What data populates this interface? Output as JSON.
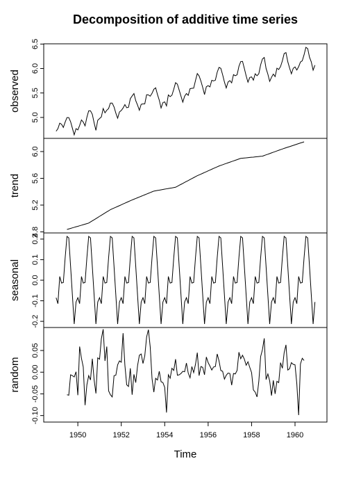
{
  "chart_data": {
    "type": "line",
    "title": "Decomposition of additive time series",
    "xlabel": "Time",
    "color": "#000000",
    "x": [
      1949,
      1949.083,
      1949.167,
      1949.25,
      1949.333,
      1949.417,
      1949.5,
      1949.583,
      1949.667,
      1949.75,
      1949.833,
      1949.917,
      1950,
      1950.083,
      1950.167,
      1950.25,
      1950.333,
      1950.417,
      1950.5,
      1950.583,
      1950.667,
      1950.75,
      1950.833,
      1950.917,
      1951,
      1951.083,
      1951.167,
      1951.25,
      1951.333,
      1951.417,
      1951.5,
      1951.583,
      1951.667,
      1951.75,
      1951.833,
      1951.917,
      1952,
      1952.083,
      1952.167,
      1952.25,
      1952.333,
      1952.417,
      1952.5,
      1952.583,
      1952.667,
      1952.75,
      1952.833,
      1952.917,
      1953,
      1953.083,
      1953.167,
      1953.25,
      1953.333,
      1953.417,
      1953.5,
      1953.583,
      1953.667,
      1953.75,
      1953.833,
      1953.917,
      1954,
      1954.083,
      1954.167,
      1954.25,
      1954.333,
      1954.417,
      1954.5,
      1954.583,
      1954.667,
      1954.75,
      1954.833,
      1954.917,
      1955,
      1955.083,
      1955.167,
      1955.25,
      1955.333,
      1955.417,
      1955.5,
      1955.583,
      1955.667,
      1955.75,
      1955.833,
      1955.917,
      1956,
      1956.083,
      1956.167,
      1956.25,
      1956.333,
      1956.417,
      1956.5,
      1956.583,
      1956.667,
      1956.75,
      1956.833,
      1956.917,
      1957,
      1957.083,
      1957.167,
      1957.25,
      1957.333,
      1957.417,
      1957.5,
      1957.583,
      1957.667,
      1957.75,
      1957.833,
      1957.917,
      1958,
      1958.083,
      1958.167,
      1958.25,
      1958.333,
      1958.417,
      1958.5,
      1958.583,
      1958.667,
      1958.75,
      1958.833,
      1958.917,
      1959,
      1959.083,
      1959.167,
      1959.25,
      1959.333,
      1959.417,
      1959.5,
      1959.583,
      1959.667,
      1959.75,
      1959.833,
      1959.917,
      1960,
      1960.083,
      1960.167,
      1960.25,
      1960.333,
      1960.417,
      1960.5,
      1960.583,
      1960.667,
      1960.75,
      1960.833,
      1960.917
    ],
    "xlim": [
      1948.43,
      1961.47
    ],
    "xticks": [
      1950,
      1952,
      1954,
      1956,
      1958,
      1960
    ],
    "series": [
      {
        "name": "observed",
        "ylim": [
          4.572,
          6.505
        ],
        "yticks": [
          {
            "value": 5,
            "label": "5.0"
          },
          5.5,
          {
            "value": 6,
            "label": "6.0"
          },
          6.5
        ],
        "values": [
          4.718,
          4.771,
          4.883,
          4.86,
          4.796,
          4.905,
          4.997,
          4.997,
          4.913,
          4.779,
          4.644,
          4.771,
          4.745,
          4.836,
          4.949,
          4.905,
          4.828,
          5.004,
          5.136,
          5.136,
          5.063,
          4.89,
          4.736,
          4.942,
          4.977,
          5.011,
          5.182,
          5.094,
          5.147,
          5.182,
          5.293,
          5.293,
          5.215,
          5.088,
          4.984,
          5.112,
          5.142,
          5.193,
          5.263,
          5.198,
          5.209,
          5.384,
          5.438,
          5.489,
          5.342,
          5.252,
          5.147,
          5.268,
          5.278,
          5.278,
          5.464,
          5.46,
          5.434,
          5.493,
          5.576,
          5.606,
          5.468,
          5.352,
          5.193,
          5.303,
          5.318,
          5.236,
          5.46,
          5.425,
          5.455,
          5.576,
          5.71,
          5.68,
          5.557,
          5.434,
          5.313,
          5.434,
          5.489,
          5.451,
          5.587,
          5.595,
          5.598,
          5.753,
          5.897,
          5.849,
          5.743,
          5.613,
          5.468,
          5.628,
          5.649,
          5.624,
          5.759,
          5.746,
          5.762,
          5.924,
          6.023,
          6.004,
          5.872,
          5.724,
          5.602,
          5.724,
          5.753,
          5.707,
          5.875,
          5.852,
          5.872,
          6.045,
          6.142,
          6.146,
          6.001,
          5.849,
          5.72,
          5.817,
          5.829,
          5.762,
          5.892,
          5.852,
          5.894,
          6.075,
          6.196,
          6.225,
          6.001,
          5.883,
          5.737,
          5.82,
          5.886,
          5.835,
          6.006,
          5.981,
          6.04,
          6.157,
          6.306,
          6.326,
          6.138,
          6.009,
          5.892,
          6.004,
          6.033,
          5.969,
          6.038,
          6.133,
          6.157,
          6.282,
          6.433,
          6.407,
          6.23,
          6.133,
          5.966,
          6.068
        ]
      },
      {
        "name": "trend",
        "ylim": [
          4.784,
          6.197
        ],
        "yticks": [
          4.8,
          5.2,
          5.6,
          {
            "value": 6,
            "label": "6.0"
          }
        ],
        "values": [
          null,
          null,
          null,
          null,
          null,
          null,
          4.836,
          4.844,
          4.852,
          4.86,
          4.868,
          4.876,
          4.883,
          4.891,
          4.899,
          4.907,
          4.915,
          4.923,
          4.931,
          4.948,
          4.965,
          4.981,
          4.998,
          5.015,
          5.032,
          5.048,
          5.065,
          5.082,
          5.099,
          5.115,
          5.132,
          5.144,
          5.156,
          5.168,
          5.18,
          5.192,
          5.204,
          5.217,
          5.229,
          5.241,
          5.253,
          5.265,
          5.277,
          5.288,
          5.299,
          5.31,
          5.321,
          5.332,
          5.343,
          5.354,
          5.365,
          5.376,
          5.387,
          5.398,
          5.409,
          5.414,
          5.419,
          5.423,
          5.428,
          5.433,
          5.438,
          5.443,
          5.448,
          5.453,
          5.457,
          5.462,
          5.467,
          5.481,
          5.496,
          5.51,
          5.524,
          5.539,
          5.553,
          5.567,
          5.582,
          5.596,
          5.61,
          5.625,
          5.639,
          5.651,
          5.663,
          5.675,
          5.687,
          5.699,
          5.712,
          5.724,
          5.736,
          5.748,
          5.76,
          5.772,
          5.784,
          5.794,
          5.803,
          5.813,
          5.822,
          5.832,
          5.841,
          5.851,
          5.86,
          5.87,
          5.879,
          5.889,
          5.898,
          5.901,
          5.904,
          5.906,
          5.909,
          5.912,
          5.915,
          5.917,
          5.92,
          5.923,
          5.926,
          5.929,
          5.931,
          5.941,
          5.951,
          5.96,
          5.97,
          5.98,
          5.99,
          5.999,
          6.009,
          6.019,
          6.029,
          6.038,
          6.048,
          6.057,
          6.066,
          6.074,
          6.083,
          6.092,
          6.101,
          6.11,
          6.119,
          6.128,
          6.136,
          6.145,
          null,
          null,
          null,
          null,
          null,
          null
        ]
      },
      {
        "name": "seasonal",
        "ylim": [
          -0.23,
          0.23
        ],
        "yticks": [
          -0.2,
          -0.1,
          {
            "value": 0,
            "label": "0.0"
          },
          0.1,
          0.2
        ],
        "values": [
          -0.085,
          -0.114,
          0.018,
          -0.014,
          -0.011,
          0.11,
          0.213,
          0.206,
          0.067,
          -0.073,
          -0.213,
          -0.106,
          -0.085,
          -0.114,
          0.018,
          -0.014,
          -0.011,
          0.11,
          0.213,
          0.206,
          0.067,
          -0.073,
          -0.213,
          -0.106,
          -0.085,
          -0.114,
          0.018,
          -0.014,
          -0.011,
          0.11,
          0.213,
          0.206,
          0.067,
          -0.073,
          -0.213,
          -0.106,
          -0.085,
          -0.114,
          0.018,
          -0.014,
          -0.011,
          0.11,
          0.213,
          0.206,
          0.067,
          -0.073,
          -0.213,
          -0.106,
          -0.085,
          -0.114,
          0.018,
          -0.014,
          -0.011,
          0.11,
          0.213,
          0.206,
          0.067,
          -0.073,
          -0.213,
          -0.106,
          -0.085,
          -0.114,
          0.018,
          -0.014,
          -0.011,
          0.11,
          0.213,
          0.206,
          0.067,
          -0.073,
          -0.213,
          -0.106,
          -0.085,
          -0.114,
          0.018,
          -0.014,
          -0.011,
          0.11,
          0.213,
          0.206,
          0.067,
          -0.073,
          -0.213,
          -0.106,
          -0.085,
          -0.114,
          0.018,
          -0.014,
          -0.011,
          0.11,
          0.213,
          0.206,
          0.067,
          -0.073,
          -0.213,
          -0.106,
          -0.085,
          -0.114,
          0.018,
          -0.014,
          -0.011,
          0.11,
          0.213,
          0.206,
          0.067,
          -0.073,
          -0.213,
          -0.106,
          -0.085,
          -0.114,
          0.018,
          -0.014,
          -0.011,
          0.11,
          0.213,
          0.206,
          0.067,
          -0.073,
          -0.213,
          -0.106,
          -0.085,
          -0.114,
          0.018,
          -0.014,
          -0.011,
          0.11,
          0.213,
          0.206,
          0.067,
          -0.073,
          -0.213,
          -0.106,
          -0.085,
          -0.114,
          0.018,
          -0.014,
          -0.011,
          0.11,
          0.213,
          0.206,
          0.067,
          -0.073,
          -0.213,
          -0.106
        ]
      },
      {
        "name": "random",
        "ylim": [
          -0.115,
          0.103
        ],
        "yticks": [
          {
            "value": -0.1,
            "label": "-0.10"
          },
          -0.05,
          {
            "value": 0,
            "label": "0.00"
          },
          0.05
        ],
        "values": [
          null,
          null,
          null,
          null,
          null,
          null,
          -0.052,
          -0.053,
          -0.006,
          -0.008,
          -0.011,
          0.001,
          -0.053,
          0.059,
          0.032,
          0.012,
          -0.076,
          -0.029,
          -0.008,
          -0.018,
          0.031,
          -0.018,
          -0.049,
          0.033,
          0.03,
          0.077,
          0.099,
          0.026,
          0.059,
          -0.043,
          -0.052,
          -0.057,
          -0.008,
          -0.007,
          0.017,
          0.026,
          0.023,
          0.09,
          0.016,
          -0.029,
          -0.033,
          0.009,
          -0.052,
          -0.005,
          -0.024,
          0.015,
          0.039,
          0.042,
          0.02,
          0.038,
          0.081,
          0.098,
          0.058,
          -0.015,
          -0.046,
          -0.014,
          -0.018,
          0.002,
          -0.022,
          -0.024,
          -0.035,
          -0.093,
          -0.006,
          -0.014,
          0.009,
          0.004,
          0.03,
          -0.007,
          -0.006,
          -0.003,
          0.002,
          0.001,
          0.021,
          -0.002,
          -0.013,
          0.013,
          -0.001,
          0.018,
          0.045,
          -0.008,
          0.013,
          0.011,
          -0.006,
          0.035,
          0.022,
          0.014,
          0.005,
          0.012,
          0.013,
          0.042,
          0.026,
          0.004,
          0.002,
          -0.016,
          -0.007,
          -0.002,
          -0.003,
          -0.03,
          -0.003,
          -0.004,
          0.004,
          0.046,
          0.031,
          0.039,
          0.03,
          0.016,
          0.024,
          0.011,
          -0.001,
          -0.041,
          -0.046,
          -0.057,
          -0.021,
          0.036,
          0.052,
          0.078,
          -0.017,
          -0.004,
          -0.02,
          -0.054,
          -0.019,
          -0.05,
          -0.021,
          -0.024,
          0.022,
          0.009,
          0.045,
          0.063,
          0.005,
          0.008,
          0.022,
          0.018,
          0.017,
          -0.027,
          -0.099,
          0.019,
          0.032,
          0.027,
          null,
          null,
          null,
          null,
          null,
          null
        ]
      }
    ]
  }
}
